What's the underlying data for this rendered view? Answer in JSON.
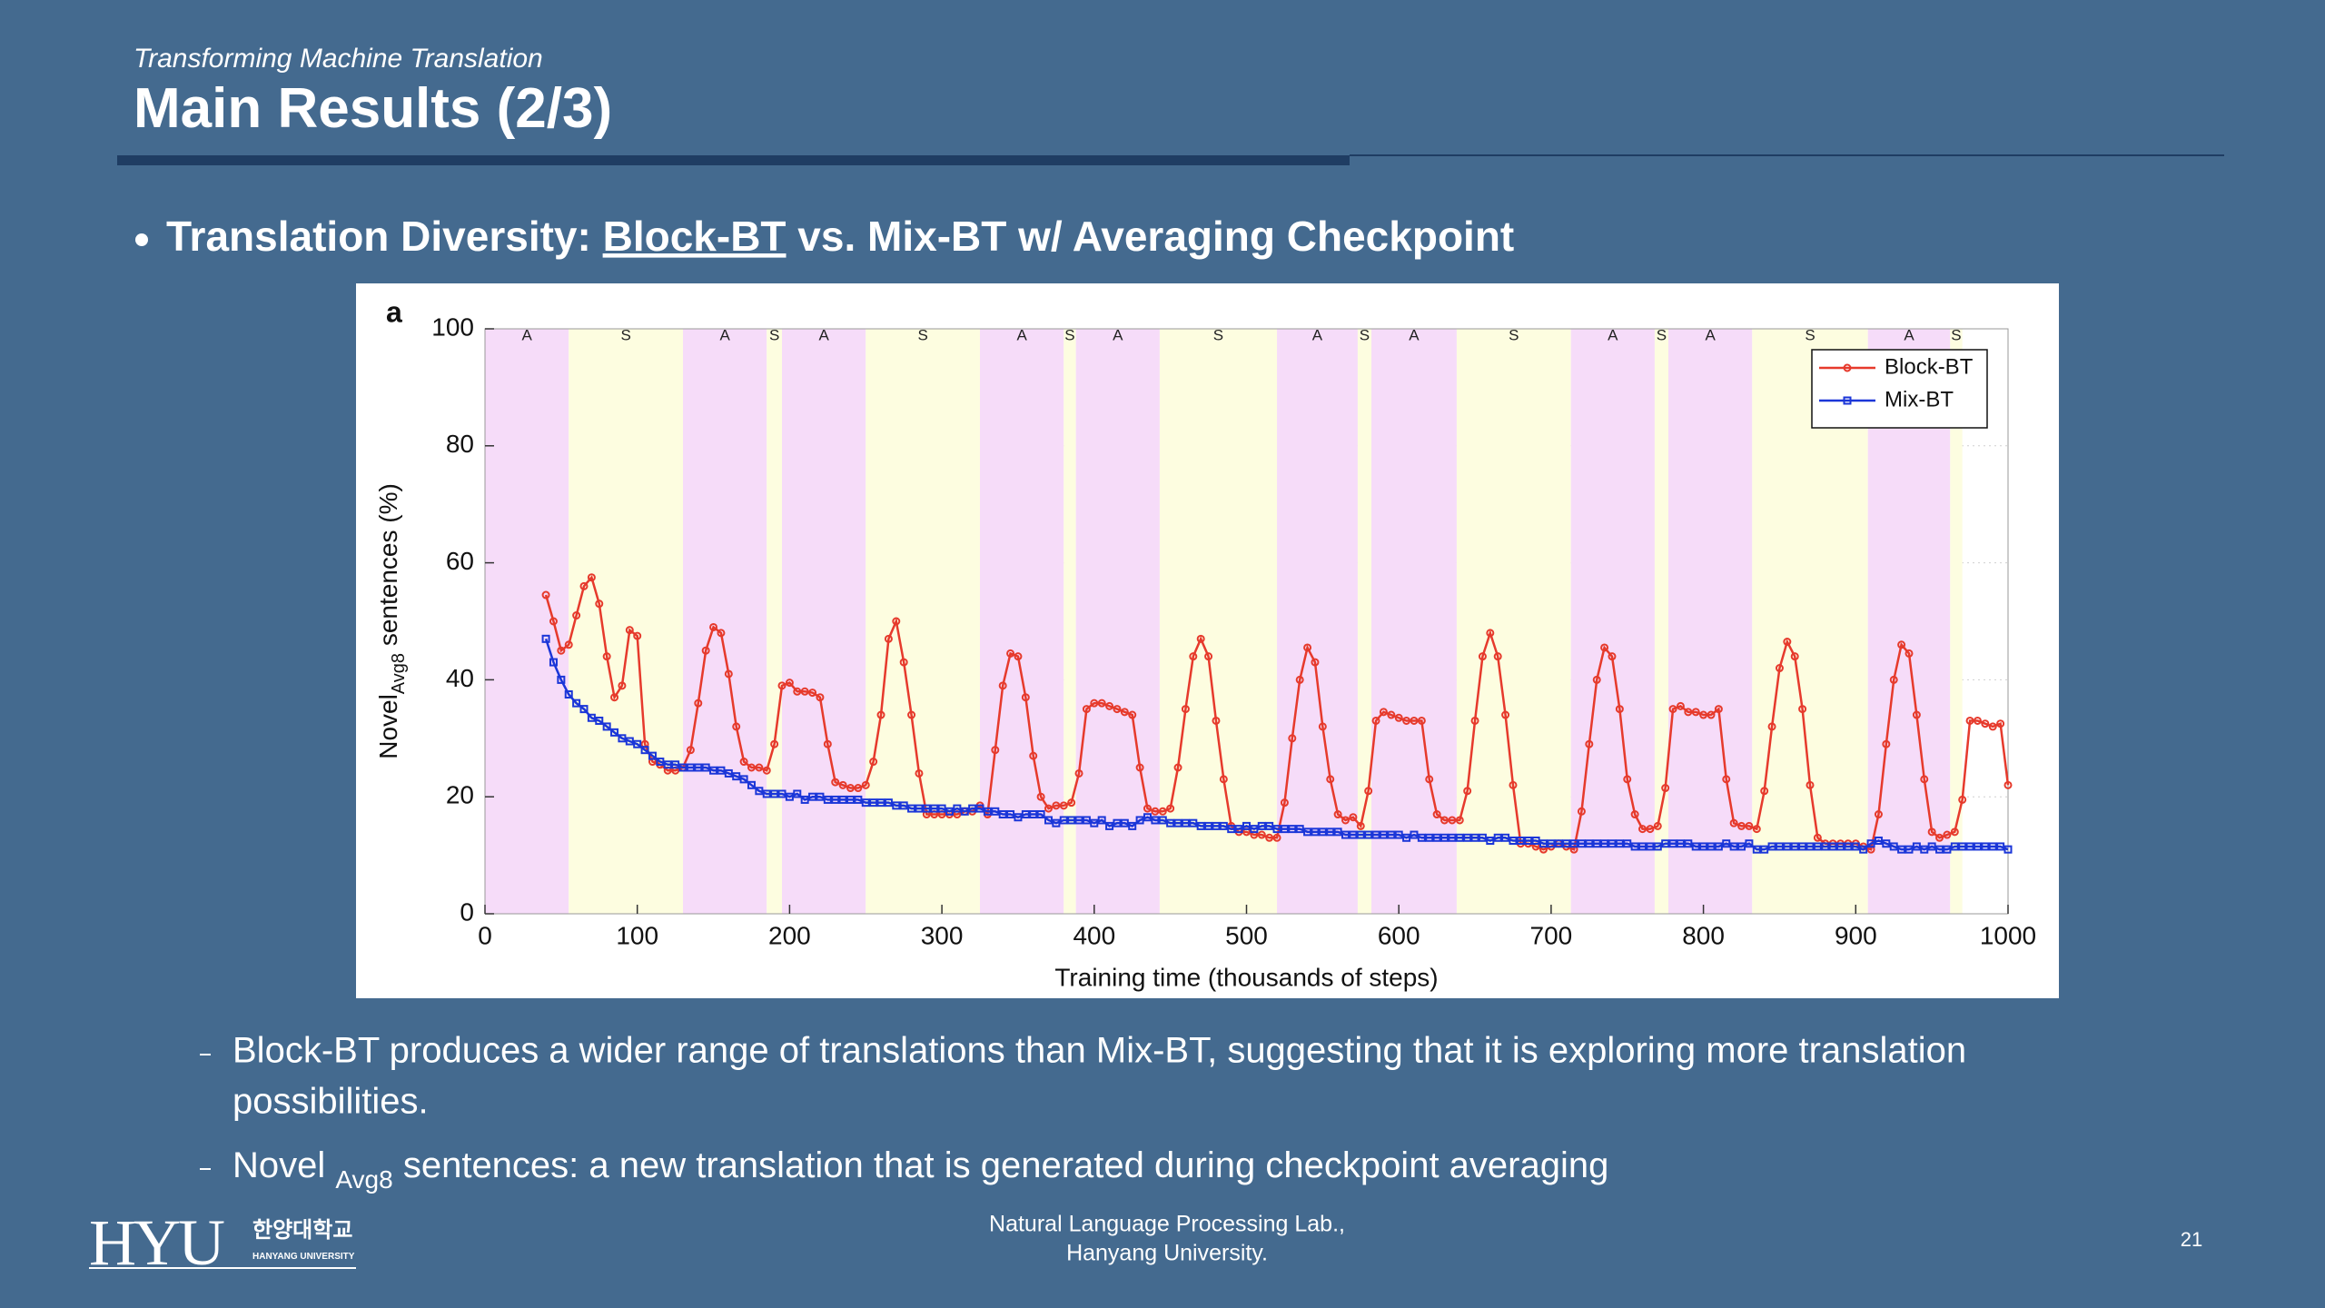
{
  "header": {
    "subtitle": "Transforming Machine Translation",
    "title": "Main Results (2/3)"
  },
  "bullet": {
    "prefix": "Translation Diversity: ",
    "underlined": "Block-BT",
    "suffix": " vs. Mix-BT w/ Averaging Checkpoint"
  },
  "subpoints": [
    {
      "lines": [
        "Block-BT produces a wider range of translations than Mix-BT, suggesting that it is exploring more translation",
        "possibilities."
      ]
    },
    {
      "main": "Novel ",
      "sub": "Avg8",
      "rest": " sentences: a new translation that is generated during checkpoint averaging"
    }
  ],
  "footer": {
    "lab": [
      "Natural Language Processing Lab.,",
      "Hanyang University."
    ],
    "page": "21",
    "logo": "HYU",
    "logo_korean": "한양대학교",
    "logo_english": "HANYANG UNIVERSITY"
  },
  "chart_data": {
    "type": "line",
    "panel_label": "a",
    "xlabel": "Training time (thousands of steps)",
    "ylabel": {
      "main": "Novel",
      "sub": "Avg8",
      "rest": " sentences (%)"
    },
    "xlim": [
      0,
      1000
    ],
    "ylim": [
      0,
      100
    ],
    "xticks": [
      0,
      100,
      200,
      300,
      400,
      500,
      600,
      700,
      800,
      900,
      1000
    ],
    "yticks": [
      0,
      20,
      40,
      60,
      80,
      100
    ],
    "grid": true,
    "legend": "upper right",
    "phase_colors": {
      "A": "#f6dcf9",
      "S": "#fdfde0"
    },
    "phases": [
      {
        "label": "A",
        "start": 0,
        "end": 55
      },
      {
        "label": "S",
        "start": 55,
        "end": 130
      },
      {
        "label": "A",
        "start": 130,
        "end": 185
      },
      {
        "label": "S",
        "start": 185,
        "end": 195
      },
      {
        "label": "A",
        "start": 195,
        "end": 250
      },
      {
        "label": "S",
        "start": 250,
        "end": 325
      },
      {
        "label": "A",
        "start": 325,
        "end": 380
      },
      {
        "label": "S",
        "start": 380,
        "end": 388
      },
      {
        "label": "A",
        "start": 388,
        "end": 443
      },
      {
        "label": "S",
        "start": 443,
        "end": 520
      },
      {
        "label": "A",
        "start": 520,
        "end": 573
      },
      {
        "label": "S",
        "start": 573,
        "end": 582
      },
      {
        "label": "A",
        "start": 582,
        "end": 638
      },
      {
        "label": "S",
        "start": 638,
        "end": 713
      },
      {
        "label": "A",
        "start": 713,
        "end": 768
      },
      {
        "label": "S",
        "start": 768,
        "end": 777
      },
      {
        "label": "A",
        "start": 777,
        "end": 832
      },
      {
        "label": "S",
        "start": 832,
        "end": 908
      },
      {
        "label": "A",
        "start": 908,
        "end": 962
      },
      {
        "label": "S",
        "start": 962,
        "end": 970
      }
    ],
    "x": [
      40,
      45,
      50,
      55,
      60,
      65,
      70,
      75,
      80,
      85,
      90,
      95,
      100,
      105,
      110,
      115,
      120,
      125,
      130,
      135,
      140,
      145,
      150,
      155,
      160,
      165,
      170,
      175,
      180,
      185,
      190,
      195,
      200,
      205,
      210,
      215,
      220,
      225,
      230,
      235,
      240,
      245,
      250,
      255,
      260,
      265,
      270,
      275,
      280,
      285,
      290,
      295,
      300,
      305,
      310,
      315,
      320,
      325,
      330,
      335,
      340,
      345,
      350,
      355,
      360,
      365,
      370,
      375,
      380,
      385,
      390,
      395,
      400,
      405,
      410,
      415,
      420,
      425,
      430,
      435,
      440,
      445,
      450,
      455,
      460,
      465,
      470,
      475,
      480,
      485,
      490,
      495,
      500,
      505,
      510,
      515,
      520,
      525,
      530,
      535,
      540,
      545,
      550,
      555,
      560,
      565,
      570,
      575,
      580,
      585,
      590,
      595,
      600,
      605,
      610,
      615,
      620,
      625,
      630,
      635,
      640,
      645,
      650,
      655,
      660,
      665,
      670,
      675,
      680,
      685,
      690,
      695,
      700,
      705,
      710,
      715,
      720,
      725,
      730,
      735,
      740,
      745,
      750,
      755,
      760,
      765,
      770,
      775,
      780,
      785,
      790,
      795,
      800,
      805,
      810,
      815,
      820,
      825,
      830,
      835,
      840,
      845,
      850,
      855,
      860,
      865,
      870,
      875,
      880,
      885,
      890,
      895,
      900,
      905,
      910,
      915,
      920,
      925,
      930,
      935,
      940,
      945,
      950,
      955,
      960,
      965,
      970,
      975,
      980,
      985,
      990,
      995,
      1000
    ],
    "series": [
      {
        "name": "Block-BT",
        "color": "#e63a2c",
        "marker": "circle",
        "values": [
          54.5,
          50,
          45,
          46,
          51,
          56,
          57.5,
          53,
          44,
          37,
          39,
          48.5,
          47.5,
          29,
          26,
          25.5,
          24.5,
          24.5,
          25,
          28,
          36,
          45,
          49,
          48,
          41,
          32,
          26,
          25,
          25,
          24.5,
          29,
          39,
          39.5,
          38,
          38,
          37.8,
          37,
          29,
          22.5,
          22,
          21.5,
          21.5,
          22,
          26,
          34,
          47,
          50,
          43,
          34,
          24,
          17,
          17,
          17,
          17,
          17,
          17.5,
          17.5,
          18.5,
          17,
          28,
          39,
          44.5,
          44,
          37,
          27,
          20,
          18,
          18.5,
          18.5,
          19,
          24,
          35,
          36,
          36,
          35.5,
          35,
          34.5,
          34,
          25,
          18,
          17.5,
          17.5,
          18,
          25,
          35,
          44,
          47,
          44,
          33,
          23,
          15,
          14,
          14,
          13.5,
          13.5,
          13,
          13,
          19,
          30,
          40,
          45.5,
          43,
          32,
          23,
          17,
          16,
          16.5,
          15,
          21,
          33,
          34.5,
          34,
          33.5,
          33,
          33,
          33,
          23,
          17,
          16,
          16,
          16,
          21,
          33,
          44,
          48,
          44,
          34,
          22,
          12,
          12,
          11.5,
          11,
          11.5,
          12,
          11.5,
          11,
          17.5,
          29,
          40,
          45.5,
          44,
          35,
          23,
          17,
          14.5,
          14.5,
          15,
          21.5,
          35,
          35.5,
          34.5,
          34.5,
          34,
          34,
          35,
          23,
          15.5,
          15,
          15,
          14.5,
          21,
          32,
          42,
          46.5,
          44,
          35,
          22,
          13,
          12,
          12,
          12,
          12,
          12,
          11.5,
          11,
          17,
          29,
          40,
          46,
          44.5,
          34,
          23,
          14,
          13,
          13.5,
          14,
          19.5,
          33,
          33,
          32.5,
          32,
          32.5,
          22
        ]
      },
      {
        "name": "Mix-BT",
        "color": "#1b36d8",
        "marker": "square",
        "values": [
          47,
          43,
          40,
          37.5,
          36,
          35,
          33.5,
          33,
          32,
          31,
          30,
          29.5,
          29,
          28,
          27,
          26,
          25.5,
          25.5,
          25,
          25,
          25,
          25,
          24.5,
          24.5,
          24,
          23.5,
          23,
          22,
          21,
          20.5,
          20.5,
          20.5,
          20,
          20.5,
          19.5,
          20,
          20,
          19.5,
          19.5,
          19.5,
          19.5,
          19.5,
          19,
          19,
          19,
          19,
          18.5,
          18.5,
          18,
          18,
          18,
          18,
          18,
          17.5,
          18,
          17.5,
          18,
          18,
          17.5,
          17.5,
          17,
          17,
          16.5,
          17,
          17,
          17,
          16,
          15.5,
          16,
          16,
          16,
          16,
          15.5,
          16,
          15,
          15.5,
          15.5,
          15,
          16,
          16.5,
          16,
          16,
          15.5,
          15.5,
          15.5,
          15.5,
          15,
          15,
          15,
          15,
          14.5,
          14.5,
          15,
          14.5,
          15,
          15,
          14.5,
          14.5,
          14.5,
          14.5,
          14,
          14,
          14,
          14,
          14,
          13.5,
          13.5,
          13.5,
          13.5,
          13.5,
          13.5,
          13.5,
          13.5,
          13,
          13.5,
          13,
          13,
          13,
          13,
          13,
          13,
          13,
          13,
          13,
          12.5,
          13,
          13,
          12.5,
          12.5,
          12.5,
          12.5,
          12,
          12,
          12,
          12,
          12,
          12,
          12,
          12,
          12,
          12,
          12,
          12,
          11.5,
          11.5,
          11.5,
          11.5,
          12,
          12,
          12,
          12,
          11.5,
          11.5,
          11.5,
          11.5,
          12,
          11.5,
          11.5,
          12,
          11,
          11,
          11.5,
          11.5,
          11.5,
          11.5,
          11.5,
          11.5,
          11.5,
          11.5,
          11.5,
          11.5,
          11.5,
          11.5,
          11,
          12,
          12.5,
          12,
          11.5,
          11,
          11,
          11.5,
          11,
          11.5,
          11,
          11,
          11.5,
          11.5,
          11.5,
          11.5,
          11.5,
          11.5,
          11.5,
          11
        ]
      }
    ]
  }
}
